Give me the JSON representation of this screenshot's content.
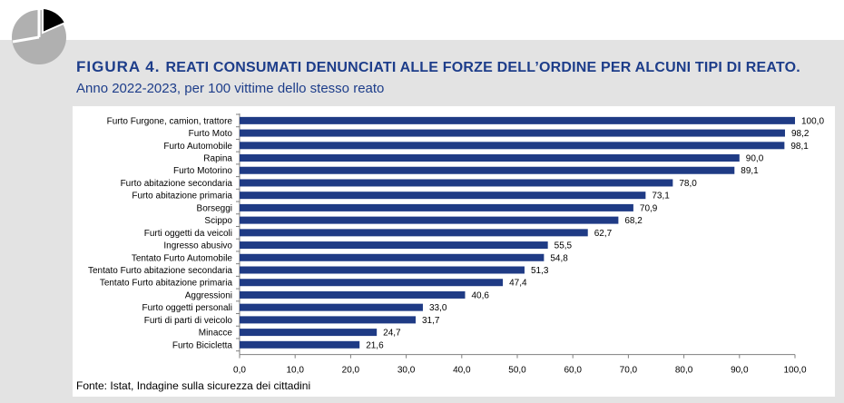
{
  "header": {
    "figure_label": "FIGURA 4.",
    "title": "REATI CONSUMATI DENUNCIATI ALLE FORZE DELL’ORDINE PER ALCUNI TIPI DI REATO.",
    "subtitle": "Anno 2022-2023, per 100 vittime dello stesso reato"
  },
  "footer": {
    "source": "Fonte: Istat, Indagine sulla sicurezza dei cittadini"
  },
  "logo": {
    "icon": "pie-chart-logo-icon",
    "colors": [
      "#b0b0b0",
      "#000000"
    ]
  },
  "chart_data": {
    "type": "bar",
    "orientation": "horizontal",
    "categories": [
      "Furto Furgone, camion, trattore",
      "Furto Moto",
      "Furto Automobile",
      "Rapina",
      "Furto  Motorino",
      "Furto abitazione secondaria",
      "Furto abitazione primaria",
      "Borseggi",
      "Scippo",
      "Furti oggetti da veicoli",
      "Ingresso abusivo",
      "Tentato Furto Automobile",
      "Tentato Furto abitazione secondaria",
      "Tentato Furto abitazione primaria",
      "Aggressioni",
      "Furto oggetti personali",
      "Furti di parti di veicolo",
      "Minacce",
      "Furto Bicicletta"
    ],
    "values": [
      100.0,
      98.2,
      98.1,
      90.0,
      89.1,
      78.0,
      73.1,
      70.9,
      68.2,
      62.7,
      55.5,
      54.8,
      51.3,
      47.4,
      40.6,
      33.0,
      31.7,
      24.7,
      21.6
    ],
    "value_labels": [
      "100,0",
      "98,2",
      "98,1",
      "90,0",
      "89,1",
      "78,0",
      "73,1",
      "70,9",
      "68,2",
      "62,7",
      "55,5",
      "54,8",
      "51,3",
      "47,4",
      "40,6",
      "33,0",
      "31,7",
      "24,7",
      "21,6"
    ],
    "xlim": [
      0,
      100
    ],
    "xticks": [
      0,
      10,
      20,
      30,
      40,
      50,
      60,
      70,
      80,
      90,
      100
    ],
    "xtick_labels": [
      "0,0",
      "10,0",
      "20,0",
      "30,0",
      "40,0",
      "50,0",
      "60,0",
      "70,0",
      "80,0",
      "90,0",
      "100,0"
    ],
    "bar_color": "#1f3b85",
    "grid": false,
    "legend": "none"
  }
}
